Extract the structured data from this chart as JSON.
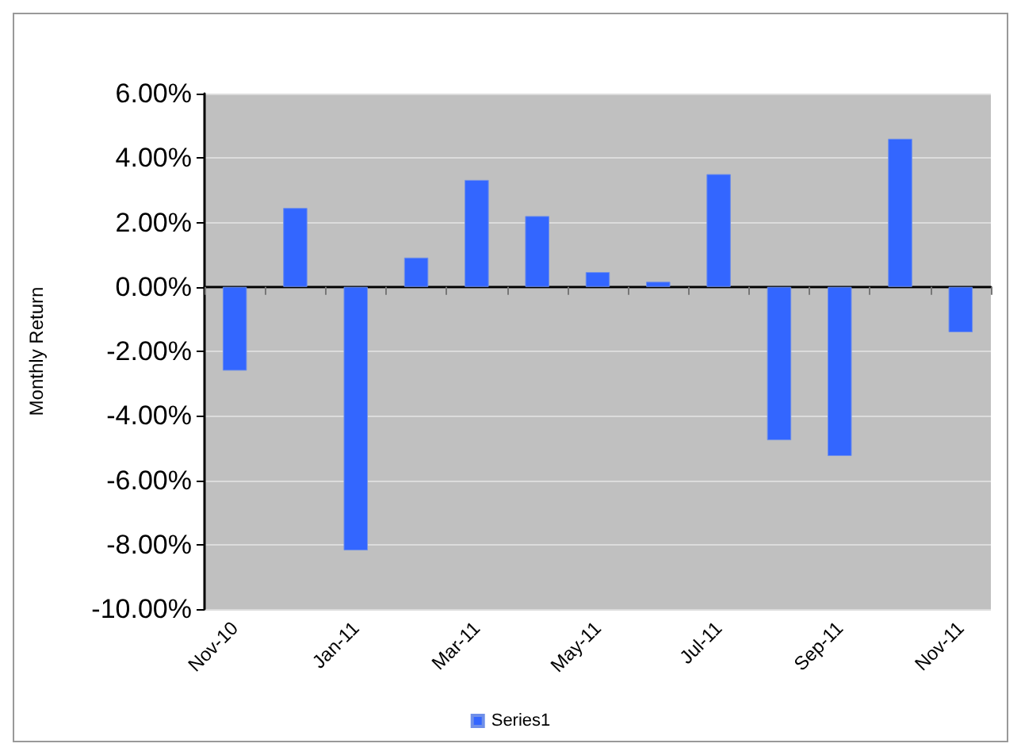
{
  "chart_data": {
    "type": "bar",
    "ylabel": "Monthly Return",
    "categories": [
      "Nov-10",
      null,
      "Jan-11",
      null,
      "Mar-11",
      null,
      "May-11",
      null,
      "Jul-11",
      null,
      "Sep-11",
      null,
      "Nov-11"
    ],
    "series": [
      {
        "name": "Series1",
        "color": "#3366ff",
        "values": [
          -2.6,
          2.45,
          -8.18,
          0.91,
          3.32,
          2.2,
          0.46,
          0.16,
          3.5,
          -4.76,
          -5.25,
          4.6,
          -1.41
        ]
      }
    ],
    "ylim": [
      -10,
      6
    ],
    "yticks": [
      {
        "value": -10,
        "label": "-10.00%"
      },
      {
        "value": -8,
        "label": "-8.00%"
      },
      {
        "value": -6,
        "label": "-6.00%"
      },
      {
        "value": -4,
        "label": "-4.00%"
      },
      {
        "value": -2,
        "label": "-2.00%"
      },
      {
        "value": 0,
        "label": "0.00%"
      },
      {
        "value": 2,
        "label": "2.00%"
      },
      {
        "value": 4,
        "label": "4.00%"
      },
      {
        "value": 6,
        "label": "6.00%"
      }
    ],
    "grid": "y",
    "legend": "bottom"
  }
}
